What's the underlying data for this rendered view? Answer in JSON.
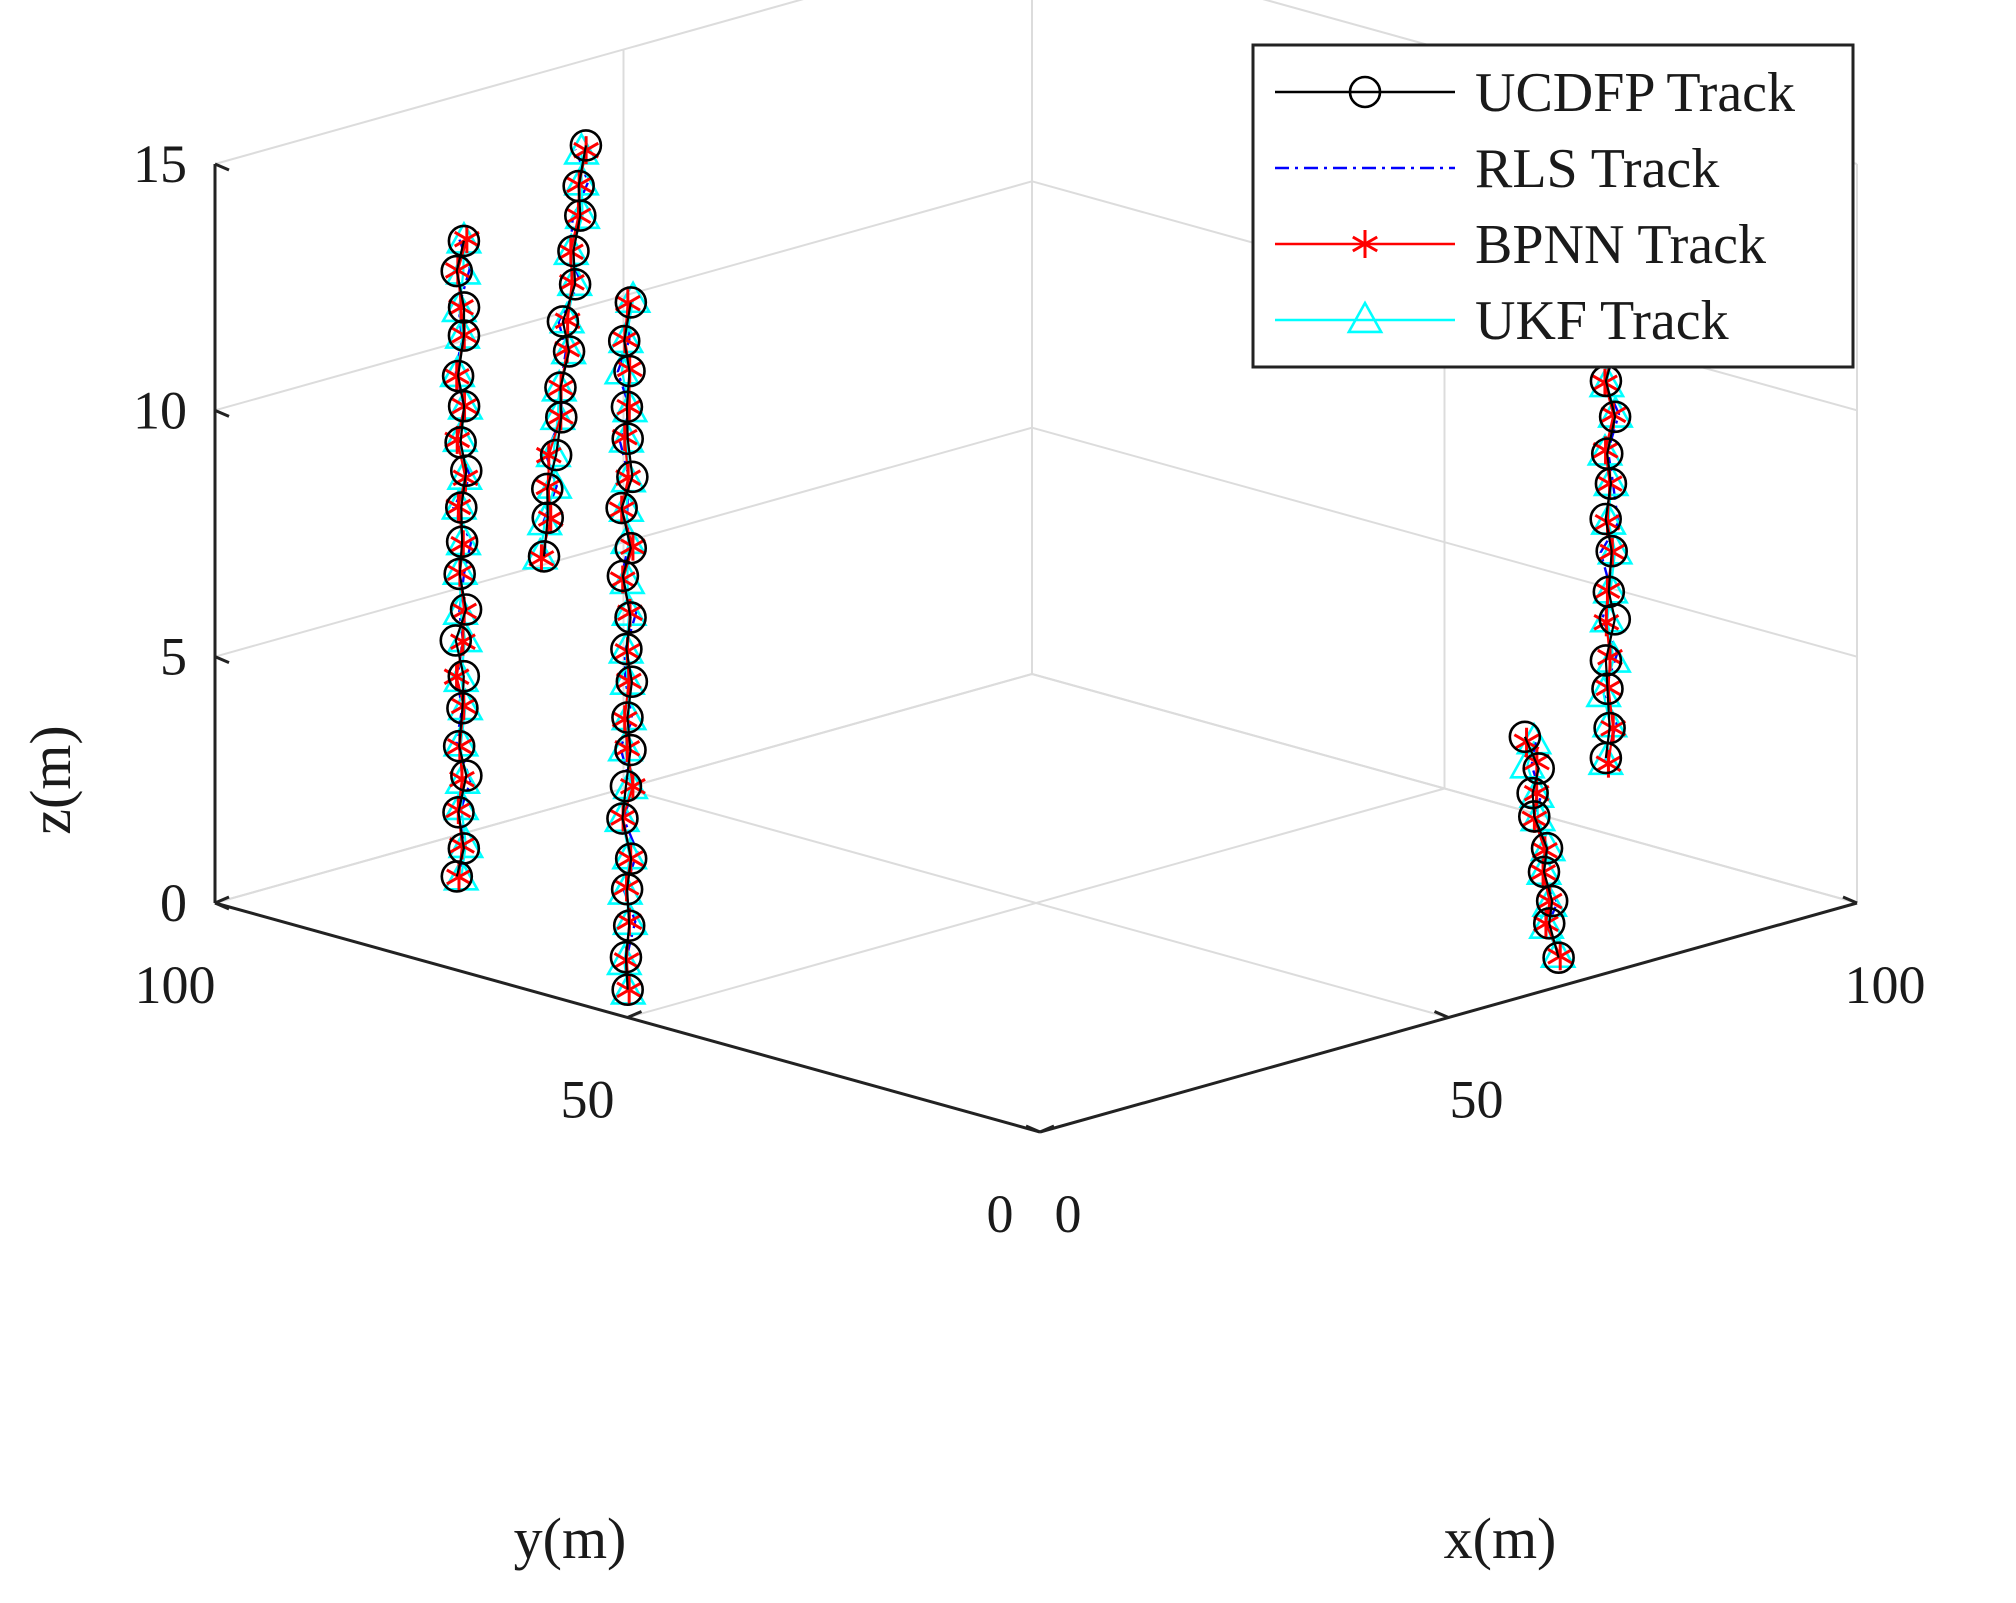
{
  "chart_data": {
    "type": "line3d",
    "title": "",
    "xlabel": "x(m)",
    "ylabel": "y(m)",
    "zlabel": "z(m)",
    "xlim": [
      0,
      100
    ],
    "ylim": [
      0,
      100
    ],
    "zlim": [
      0,
      15
    ],
    "xticks": [
      0,
      50,
      100
    ],
    "yticks": [
      0,
      50,
      100
    ],
    "zticks": [
      0,
      5,
      10,
      15
    ],
    "xtick_labels": [
      "0",
      "50",
      "100"
    ],
    "ytick_labels": [
      "0",
      "50",
      "100"
    ],
    "ztick_labels": [
      "0",
      "5",
      "10",
      "15"
    ],
    "grid": true,
    "legend_position": "top-right",
    "series": [
      {
        "name": "UCDFP Track",
        "color": "#000000",
        "marker": "circle",
        "line": "solid"
      },
      {
        "name": "RLS Track",
        "color": "#0000ff",
        "marker": "none",
        "line": "dashdot"
      },
      {
        "name": "BPNN Track",
        "color": "#ff0000",
        "marker": "asterisk",
        "line": "solid"
      },
      {
        "name": "UKF Track",
        "color": "#00ffff",
        "marker": "triangle",
        "line": "solid"
      }
    ],
    "tracks": [
      {
        "id": "target-1",
        "x": [
          0,
          0
        ],
        "y": [
          50,
          50
        ],
        "z": [
          14.5,
          0.5
        ]
      },
      {
        "id": "target-2",
        "x": [
          10,
          15
        ],
        "y": [
          70,
          70
        ],
        "z": [
          8,
          16
        ]
      },
      {
        "id": "target-3",
        "x": [
          15,
          15
        ],
        "y": [
          85,
          85
        ],
        "z": [
          13.5,
          0.5
        ]
      },
      {
        "id": "target-4",
        "x": [
          62,
          65
        ],
        "y": [
          2,
          2
        ],
        "z": [
          5,
          0.5
        ]
      },
      {
        "id": "target-5",
        "x": [
          100,
          100
        ],
        "y": [
          30,
          30
        ],
        "z": [
          12,
          1.5
        ]
      }
    ]
  }
}
